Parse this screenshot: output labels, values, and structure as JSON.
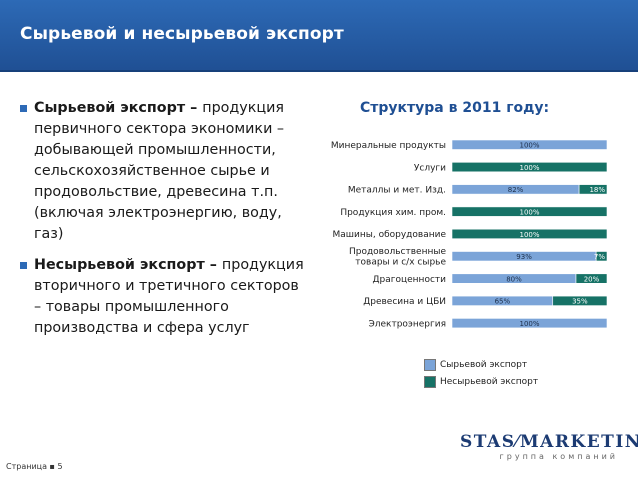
{
  "header": {
    "title": "Сырьевой и несырьевой экспорт"
  },
  "left": {
    "bullets": [
      {
        "strong": "Сырьевой экспорт – ",
        "text": "продукция первичного сектора экономики – добывающей промышленности, сельскохозяйственное сырье и продовольствие, древесина т.п. (включая электроэнергию, воду, газ)"
      },
      {
        "strong": "Несырьевой экспорт – ",
        "text": "продукция вторичного и третичного секторов – товары промышленного производства и сфера услуг"
      }
    ]
  },
  "colors": {
    "raw": "#7ba4d8",
    "nonraw": "#167266",
    "header": "#2d6ab6"
  },
  "chart_data": {
    "type": "bar",
    "orientation": "horizontal",
    "stacked": true,
    "title": "Структура в 2011 году:",
    "categories": [
      "Минеральные продукты",
      "Услуги",
      "Металлы и мет. Изд.",
      "Продукция хим. пром.",
      "Машины, оборудование",
      "Продовольственные товары и с/х сырье",
      "Драгоценности",
      "Древесина и ЦБИ",
      "Электроэнергия"
    ],
    "category_lines": [
      [
        "Минеральные продукты"
      ],
      [
        "Услуги"
      ],
      [
        "Металлы и мет. Изд."
      ],
      [
        "Продукция хим. пром."
      ],
      [
        "Машины, оборудование"
      ],
      [
        "Продовольственные",
        "товары и с/х сырье"
      ],
      [
        "Драгоценности"
      ],
      [
        "Древесина и ЦБИ"
      ],
      [
        "Электроэнергия"
      ]
    ],
    "series": [
      {
        "name": "Сырьевой экспорт",
        "color": "#7ba4d8",
        "values": [
          100,
          0,
          82,
          0,
          0,
          93,
          80,
          65,
          100
        ]
      },
      {
        "name": "Несырьевой экспорт",
        "color": "#167266",
        "values": [
          0,
          100,
          18,
          100,
          100,
          7,
          20,
          35,
          0
        ]
      }
    ],
    "labels": [
      [
        "100%",
        ""
      ],
      [
        "",
        "100%"
      ],
      [
        "82%",
        "18%"
      ],
      [
        "",
        "100%"
      ],
      [
        "",
        "100%"
      ],
      [
        "93%",
        "7%"
      ],
      [
        "80%",
        "20%"
      ],
      [
        "65%",
        "35%"
      ],
      [
        "100%",
        ""
      ]
    ],
    "xlim": [
      0,
      100
    ],
    "legend": "bottom",
    "grid": false
  },
  "footer": {
    "logo_left": "STAS",
    "logo_right": "MARKETING",
    "logo_sub": "группа компаний",
    "page": "Страница ▪ 5"
  }
}
